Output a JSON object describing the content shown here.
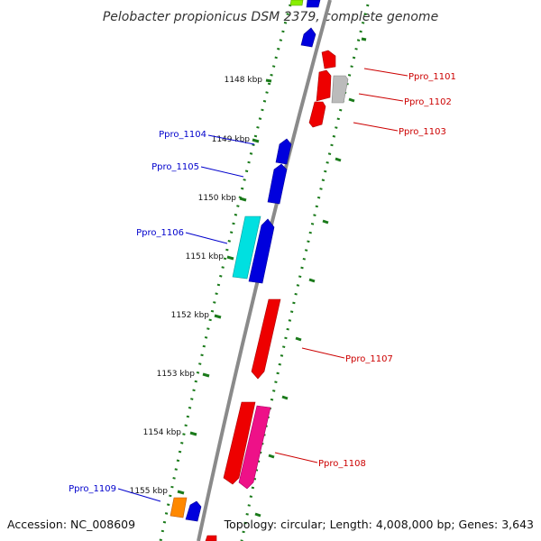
{
  "title": "Pelobacter propionicus DSM 2379, complete genome",
  "footer": {
    "accession": "Accession: NC_008609",
    "topology": "Topology: circular; Length: 4,008,000 bp; Genes: 3,643"
  },
  "scale_ticks": [
    "1148 kbp",
    "1149 kbp",
    "1150 kbp",
    "1151 kbp",
    "1152 kbp",
    "1153 kbp",
    "1154 kbp",
    "1155 kbp"
  ],
  "gene_labels": [
    {
      "text": "Ppro_1101",
      "color": "#cc0000"
    },
    {
      "text": "Ppro_1102",
      "color": "#cc0000"
    },
    {
      "text": "Ppro_1103",
      "color": "#cc0000"
    },
    {
      "text": "Ppro_1104",
      "color": "#0000cc"
    },
    {
      "text": "Ppro_1105",
      "color": "#0000cc"
    },
    {
      "text": "Ppro_1106",
      "color": "#0000cc"
    },
    {
      "text": "Ppro_1107",
      "color": "#cc0000"
    },
    {
      "text": "Ppro_1108",
      "color": "#cc0000"
    },
    {
      "text": "Ppro_1109",
      "color": "#0000cc"
    }
  ],
  "colors": {
    "backbone": "#888888",
    "ticks": "#1a7a1a",
    "red": "#ee0000",
    "blue": "#0000dd",
    "cyan": "#00e0e0",
    "magenta": "#ee1188",
    "gray": "#bbbbbb",
    "orange": "#ff8800",
    "lime": "#88ee00"
  }
}
